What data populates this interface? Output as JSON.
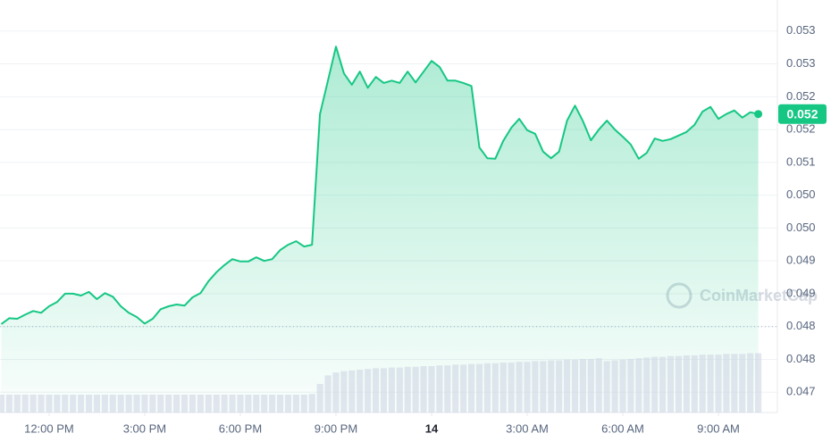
{
  "chart_data": {
    "type": "line",
    "watermark": "CoinMarketCap",
    "xlim": [
      10.46,
      34.85
    ],
    "xticks": [
      {
        "value": 12,
        "label": "12:00 PM"
      },
      {
        "value": 15,
        "label": "3:00 PM"
      },
      {
        "value": 18,
        "label": "6:00 PM"
      },
      {
        "value": 21,
        "label": "9:00 PM"
      },
      {
        "value": 24,
        "label": "14"
      },
      {
        "value": 27,
        "label": "3:00 AM"
      },
      {
        "value": 30,
        "label": "6:00 AM"
      },
      {
        "value": 33,
        "label": "9:00 AM"
      }
    ],
    "ylim": [
      0.04676,
      0.05367
    ],
    "yticks": [
      {
        "value": 0.0471,
        "label": "0.047"
      },
      {
        "value": 0.04765,
        "label": "0.048"
      },
      {
        "value": 0.0482,
        "label": "0.048"
      },
      {
        "value": 0.04875,
        "label": "0.049"
      },
      {
        "value": 0.0493,
        "label": "0.049"
      },
      {
        "value": 0.04985,
        "label": "0.050"
      },
      {
        "value": 0.0504,
        "label": "0.050"
      },
      {
        "value": 0.05095,
        "label": "0.051"
      },
      {
        "value": 0.0515,
        "label": "0.052"
      },
      {
        "value": 0.05205,
        "label": "0.052"
      },
      {
        "value": 0.0526,
        "label": "0.053"
      },
      {
        "value": 0.05315,
        "label": "0.053"
      }
    ],
    "grid": true,
    "reference_line": 0.0482,
    "y2lim": [
      0,
      100
    ],
    "x": [
      10.5,
      10.75,
      11,
      11.25,
      11.5,
      11.75,
      12,
      12.25,
      12.5,
      12.75,
      13,
      13.25,
      13.5,
      13.75,
      14,
      14.25,
      14.5,
      14.75,
      15,
      15.25,
      15.5,
      15.75,
      16,
      16.25,
      16.5,
      16.75,
      17,
      17.25,
      17.5,
      17.75,
      18,
      18.25,
      18.5,
      18.75,
      19,
      19.25,
      19.5,
      19.75,
      20,
      20.25,
      20.5,
      20.75,
      21,
      21.25,
      21.5,
      21.75,
      22,
      22.25,
      22.5,
      22.75,
      23,
      23.25,
      23.5,
      23.75,
      24,
      24.25,
      24.5,
      24.75,
      25,
      25.25,
      25.5,
      25.75,
      26,
      26.25,
      26.5,
      26.75,
      27,
      27.25,
      27.5,
      27.75,
      28,
      28.25,
      28.5,
      28.75,
      29,
      29.25,
      29.5,
      29.75,
      30,
      30.25,
      30.5,
      30.75,
      31,
      31.25,
      31.5,
      31.75,
      32,
      32.25,
      32.5,
      32.75,
      33,
      33.25,
      33.5,
      33.75,
      34,
      34.25
    ],
    "series": [
      {
        "color": "#16c784",
        "end_label": "0.052",
        "values": [
          0.04824,
          0.04834,
          0.04833,
          0.0484,
          0.04846,
          0.04843,
          0.04854,
          0.04861,
          0.04875,
          0.04875,
          0.04872,
          0.04878,
          0.04866,
          0.04876,
          0.0487,
          0.04854,
          0.04843,
          0.04836,
          0.04825,
          0.04833,
          0.04849,
          0.04854,
          0.04857,
          0.04855,
          0.04869,
          0.04876,
          0.04896,
          0.04911,
          0.04923,
          0.04933,
          0.04929,
          0.04929,
          0.04936,
          0.0493,
          0.04933,
          0.04948,
          0.04957,
          0.04963,
          0.04954,
          0.04957,
          0.05176,
          0.05232,
          0.05289,
          0.05244,
          0.05225,
          0.05247,
          0.0522,
          0.05238,
          0.05228,
          0.05232,
          0.05228,
          0.05247,
          0.05229,
          0.05247,
          0.05265,
          0.05255,
          0.05232,
          0.05232,
          0.05228,
          0.05223,
          0.0512,
          0.05102,
          0.05101,
          0.05131,
          0.05153,
          0.05168,
          0.05149,
          0.05143,
          0.05113,
          0.05102,
          0.05113,
          0.05165,
          0.0519,
          0.05164,
          0.05132,
          0.0515,
          0.05165,
          0.0515,
          0.05138,
          0.05125,
          0.05101,
          0.05111,
          0.05135,
          0.05131,
          0.05134,
          0.0514,
          0.05146,
          0.05158,
          0.0518,
          0.05188,
          0.05168,
          0.05176,
          0.05182,
          0.0517,
          0.05179,
          0.05176
        ]
      },
      {
        "color": "#cfd6e4",
        "axis": "y2",
        "values": [
          25,
          25,
          25,
          25,
          25,
          25,
          25,
          25,
          25,
          25,
          25,
          25,
          25,
          25,
          25,
          25,
          25,
          25,
          25,
          25,
          25,
          25,
          25,
          25,
          25,
          25,
          25,
          25,
          25,
          25,
          25,
          25,
          25,
          25,
          25,
          25,
          25,
          25,
          25,
          26,
          40,
          52,
          56,
          58,
          59,
          60,
          61,
          62,
          62,
          63,
          63,
          64,
          64,
          65,
          65,
          66,
          66,
          67,
          67,
          68,
          68,
          69,
          69,
          70,
          70,
          71,
          71,
          72,
          72,
          73,
          73,
          74,
          74,
          75,
          75,
          76,
          72,
          73,
          74,
          75,
          76,
          77,
          78,
          78,
          79,
          79,
          80,
          80,
          81,
          81,
          81,
          82,
          82,
          82,
          83,
          83
        ]
      }
    ]
  }
}
